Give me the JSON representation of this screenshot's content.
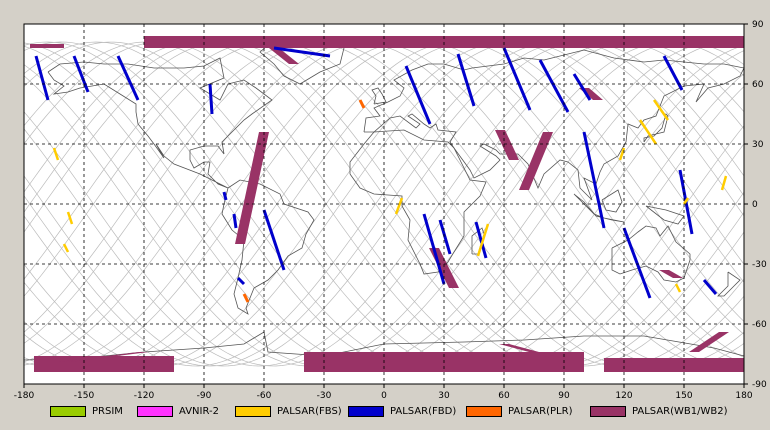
{
  "map": {
    "lon_ticks": [
      -180,
      -150,
      -120,
      -90,
      -60,
      -30,
      0,
      30,
      60,
      90,
      120,
      150,
      180
    ],
    "lat_ticks": [
      90,
      60,
      30,
      0,
      -30,
      -60,
      -90
    ],
    "lon_range": [
      -180,
      180
    ],
    "lat_range": [
      -90,
      90
    ],
    "gridlines": "dashed",
    "background": "#ffffff",
    "coastline_color": "#555555",
    "orbit_color": "#bbbbbb"
  },
  "legend": [
    {
      "label": "PRSIM",
      "color": "#99cc00"
    },
    {
      "label": "AVNIR-2",
      "color": "#ff33ff"
    },
    {
      "label": "PALSAR(FBS)",
      "color": "#ffcc00"
    },
    {
      "label": "PALSAR(FBD)",
      "color": "#0000cc"
    },
    {
      "label": "PALSAR(PLR)",
      "color": "#ff6600"
    },
    {
      "label": "PALSAR(WB1/WB2)",
      "color": "#993366"
    }
  ],
  "chart_data": {
    "type": "map",
    "wb_swaths": [
      {
        "lon": [
          [
            -177,
            -160
          ],
          [
            -177,
            -160
          ]
        ],
        "lat": [
          80,
          78
        ]
      },
      {
        "lon": [
          [
            -120,
            180
          ]
        ],
        "lat": [
          84,
          78
        ]
      },
      {
        "lon": [
          [
            -175,
            -105
          ]
        ],
        "lat": [
          -76,
          -84
        ]
      },
      {
        "lon": [
          [
            -40,
            100
          ]
        ],
        "lat": [
          -74,
          -84
        ]
      },
      {
        "lon": [
          [
            110,
            180
          ]
        ],
        "lat": [
          -77,
          -84
        ]
      }
    ],
    "strips": {
      "FBD": [
        [
          [
            -174,
            74
          ],
          [
            -168,
            52
          ]
        ],
        [
          [
            -155,
            74
          ],
          [
            -148,
            56
          ]
        ],
        [
          [
            -133,
            74
          ],
          [
            -123,
            52
          ]
        ],
        [
          [
            -87,
            60
          ],
          [
            -86,
            45
          ]
        ],
        [
          [
            -75,
            -5
          ],
          [
            -74,
            -12
          ]
        ],
        [
          [
            -60,
            -3
          ],
          [
            -50,
            -33
          ]
        ],
        [
          [
            -73,
            -37
          ],
          [
            -70,
            -40
          ]
        ],
        [
          [
            -55,
            78
          ],
          [
            -27,
            74
          ]
        ],
        [
          [
            11,
            69
          ],
          [
            23,
            40
          ]
        ],
        [
          [
            20,
            -5
          ],
          [
            30,
            -40
          ]
        ],
        [
          [
            37,
            75
          ],
          [
            45,
            49
          ]
        ],
        [
          [
            60,
            78
          ],
          [
            73,
            47
          ]
        ],
        [
          [
            78,
            72
          ],
          [
            92,
            46
          ]
        ],
        [
          [
            95,
            65
          ],
          [
            103,
            52
          ]
        ],
        [
          [
            100,
            36
          ],
          [
            110,
            -12
          ]
        ],
        [
          [
            120,
            -12
          ],
          [
            133,
            -47
          ]
        ],
        [
          [
            140,
            74
          ],
          [
            149,
            57
          ]
        ],
        [
          [
            148,
            17
          ],
          [
            154,
            -15
          ]
        ],
        [
          [
            160,
            -38
          ],
          [
            166,
            -45
          ]
        ],
        [
          [
            -80,
            6
          ],
          [
            -79,
            2
          ]
        ],
        [
          [
            28,
            -8
          ],
          [
            33,
            -25
          ]
        ],
        [
          [
            46,
            -9
          ],
          [
            51,
            -27
          ]
        ]
      ],
      "FBS": [
        [
          [
            -165,
            28
          ],
          [
            -163,
            22
          ]
        ],
        [
          [
            -158,
            -4
          ],
          [
            -156,
            -10
          ]
        ],
        [
          [
            -160,
            -20
          ],
          [
            -158,
            -24
          ]
        ],
        [
          [
            135,
            52
          ],
          [
            142,
            42
          ]
        ],
        [
          [
            128,
            42
          ],
          [
            136,
            30
          ]
        ],
        [
          [
            120,
            28
          ],
          [
            118,
            22
          ]
        ],
        [
          [
            152,
            3
          ],
          [
            150,
            0
          ]
        ],
        [
          [
            171,
            14
          ],
          [
            169,
            7
          ]
        ],
        [
          [
            52,
            -10
          ],
          [
            47,
            -26
          ]
        ],
        [
          [
            9,
            3
          ],
          [
            6,
            -5
          ]
        ],
        [
          [
            146,
            -40
          ],
          [
            148,
            -44
          ]
        ]
      ],
      "PLR": [
        [
          [
            -12,
            52
          ],
          [
            -10,
            48
          ]
        ],
        [
          [
            -70,
            -45
          ],
          [
            -68,
            -49
          ]
        ]
      ]
    },
    "wb_blocks": [
      [
        [
          -60,
          36
        ],
        [
          -72,
          -20
        ]
      ],
      [
        [
          82,
          36
        ],
        [
          70,
          7
        ]
      ],
      [
        [
          -55,
          78
        ],
        [
          -45,
          70
        ]
      ],
      [
        [
          25,
          -22
        ],
        [
          35,
          -42
        ]
      ],
      [
        [
          58,
          37
        ],
        [
          65,
          22
        ]
      ],
      [
        [
          100,
          58
        ],
        [
          107,
          52
        ]
      ],
      [
        [
          140,
          -33
        ],
        [
          147,
          -37
        ]
      ],
      [
        [
          155,
          -74
        ],
        [
          170,
          -64
        ]
      ],
      [
        [
          60,
          -70
        ],
        [
          90,
          -78
        ]
      ],
      [
        [
          -160,
          -79
        ],
        [
          -120,
          -74
        ]
      ]
    ]
  }
}
